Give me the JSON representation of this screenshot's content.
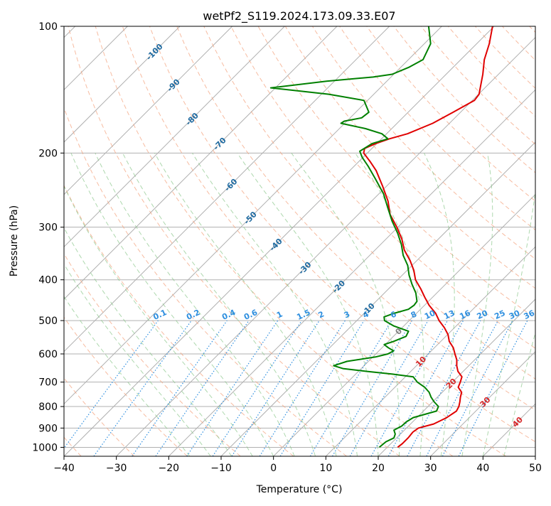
{
  "chart_data": {
    "type": "skew-t",
    "title": "wetPf2_S119.2024.173.09.33.E07",
    "xlabel": "Temperature (°C)",
    "ylabel": "Pressure (hPa)",
    "xlim": [
      -40,
      50
    ],
    "ylim_hpa": [
      1050,
      100
    ],
    "y_scale": "log",
    "grid": true,
    "x_ticks": [
      -40,
      -30,
      -20,
      -10,
      0,
      10,
      20,
      30,
      40,
      50
    ],
    "y_ticks": [
      100,
      200,
      300,
      400,
      500,
      600,
      700,
      800,
      900,
      1000
    ],
    "isotherm_labels": [
      {
        "text": "-100",
        "t": -100,
        "p": 115
      },
      {
        "text": "-90",
        "t": -90,
        "p": 138
      },
      {
        "text": "-80",
        "t": -80,
        "p": 166
      },
      {
        "text": "-70",
        "t": -70,
        "p": 190
      },
      {
        "text": "-60",
        "t": -60,
        "p": 238
      },
      {
        "text": "-50",
        "t": -50,
        "p": 285
      },
      {
        "text": "-40",
        "t": -40,
        "p": 330
      },
      {
        "text": "-30",
        "t": -30,
        "p": 375
      },
      {
        "text": "-20",
        "t": -20,
        "p": 415
      },
      {
        "text": "-10",
        "t": -10,
        "p": 470
      },
      {
        "text": "0",
        "t": 0,
        "p": 530
      },
      {
        "text": "10",
        "t": 10,
        "p": 625
      },
      {
        "text": "20",
        "t": 20,
        "p": 705
      },
      {
        "text": "30",
        "t": 30,
        "p": 780
      },
      {
        "text": "40",
        "t": 40,
        "p": 870
      }
    ],
    "mixing_ratio_labels": [
      {
        "text": "0.1",
        "w": 0.1
      },
      {
        "text": "0.2",
        "w": 0.2
      },
      {
        "text": "0.4",
        "w": 0.4
      },
      {
        "text": "0.6",
        "w": 0.6
      },
      {
        "text": "1",
        "w": 1
      },
      {
        "text": "1.5",
        "w": 1.5
      },
      {
        "text": "2",
        "w": 2
      },
      {
        "text": "3",
        "w": 3
      },
      {
        "text": "4",
        "w": 4
      },
      {
        "text": "6",
        "w": 6
      },
      {
        "text": "8",
        "w": 8
      },
      {
        "text": "10",
        "w": 10
      },
      {
        "text": "13",
        "w": 13
      },
      {
        "text": "16",
        "w": 16
      },
      {
        "text": "20",
        "w": 20
      },
      {
        "text": "25",
        "w": 25
      },
      {
        "text": "30",
        "w": 30
      },
      {
        "text": "36",
        "w": 36
      }
    ],
    "series": [
      {
        "color": "#e00000",
        "points": [
          [
            1000,
            22.0
          ],
          [
            980,
            22.2
          ],
          [
            950,
            22.2
          ],
          [
            920,
            22.0
          ],
          [
            900,
            22.3
          ],
          [
            880,
            24.4
          ],
          [
            850,
            25.7
          ],
          [
            820,
            26.3
          ],
          [
            800,
            25.9
          ],
          [
            780,
            25.2
          ],
          [
            760,
            24.4
          ],
          [
            740,
            23.7
          ],
          [
            720,
            22.1
          ],
          [
            700,
            21.5
          ],
          [
            680,
            20.8
          ],
          [
            660,
            19.0
          ],
          [
            640,
            17.7
          ],
          [
            620,
            16.6
          ],
          [
            600,
            15.1
          ],
          [
            580,
            13.6
          ],
          [
            560,
            11.6
          ],
          [
            540,
            10.1
          ],
          [
            520,
            8.1
          ],
          [
            500,
            5.7
          ],
          [
            480,
            3.6
          ],
          [
            460,
            0.9
          ],
          [
            440,
            -1.5
          ],
          [
            420,
            -3.9
          ],
          [
            400,
            -6.6
          ],
          [
            380,
            -8.7
          ],
          [
            360,
            -11.3
          ],
          [
            340,
            -14.4
          ],
          [
            320,
            -17.0
          ],
          [
            300,
            -20.2
          ],
          [
            280,
            -23.9
          ],
          [
            260,
            -26.9
          ],
          [
            240,
            -30.7
          ],
          [
            220,
            -35.0
          ],
          [
            210,
            -37.7
          ],
          [
            200,
            -40.7
          ],
          [
            195,
            -41.4
          ],
          [
            190,
            -40.2
          ],
          [
            185,
            -38.5
          ],
          [
            180,
            -36.0
          ],
          [
            170,
            -33.2
          ],
          [
            160,
            -31.4
          ],
          [
            150,
            -29.6
          ],
          [
            145,
            -29.9
          ],
          [
            140,
            -30.9
          ],
          [
            130,
            -33.0
          ],
          [
            120,
            -35.5
          ],
          [
            110,
            -37.6
          ],
          [
            100,
            -40.3
          ]
        ]
      },
      {
        "color": "#008000",
        "points": [
          [
            1000,
            18.5
          ],
          [
            970,
            18.7
          ],
          [
            950,
            19.5
          ],
          [
            930,
            19.0
          ],
          [
            910,
            18.0
          ],
          [
            890,
            18.7
          ],
          [
            870,
            18.8
          ],
          [
            850,
            19.3
          ],
          [
            820,
            22.5
          ],
          [
            800,
            22.0
          ],
          [
            780,
            20.3
          ],
          [
            760,
            18.8
          ],
          [
            740,
            17.5
          ],
          [
            720,
            15.7
          ],
          [
            700,
            13.3
          ],
          [
            680,
            11.5
          ],
          [
            670,
            7.0
          ],
          [
            660,
            1.5
          ],
          [
            650,
            -3.5
          ],
          [
            640,
            -5.8
          ],
          [
            625,
            -4.1
          ],
          [
            610,
            0.5
          ],
          [
            600,
            2.3
          ],
          [
            590,
            2.8
          ],
          [
            580,
            1.2
          ],
          [
            570,
            -0.2
          ],
          [
            560,
            1.0
          ],
          [
            545,
            2.4
          ],
          [
            530,
            1.9
          ],
          [
            515,
            -1.9
          ],
          [
            500,
            -4.7
          ],
          [
            490,
            -5.5
          ],
          [
            480,
            -4.2
          ],
          [
            470,
            -2.3
          ],
          [
            460,
            -2.0
          ],
          [
            450,
            -2.2
          ],
          [
            430,
            -4.0
          ],
          [
            410,
            -6.4
          ],
          [
            390,
            -8.7
          ],
          [
            370,
            -10.8
          ],
          [
            350,
            -13.6
          ],
          [
            330,
            -16.0
          ],
          [
            310,
            -18.9
          ],
          [
            290,
            -22.3
          ],
          [
            270,
            -25.6
          ],
          [
            250,
            -29.1
          ],
          [
            230,
            -33.6
          ],
          [
            215,
            -37.3
          ],
          [
            205,
            -40.1
          ],
          [
            198,
            -41.8
          ],
          [
            190,
            -40.9
          ],
          [
            185,
            -38.8
          ],
          [
            180,
            -40.9
          ],
          [
            175,
            -45.0
          ],
          [
            170,
            -50.7
          ],
          [
            168,
            -50.5
          ],
          [
            165,
            -47.8
          ],
          [
            160,
            -47.5
          ],
          [
            150,
            -50.7
          ],
          [
            145,
            -58.6
          ],
          [
            140,
            -70.9
          ],
          [
            135,
            -61.5
          ],
          [
            132,
            -53.4
          ],
          [
            130,
            -50.3
          ],
          [
            125,
            -48.4
          ],
          [
            120,
            -47.2
          ],
          [
            110,
            -48.8
          ],
          [
            100,
            -52.5
          ]
        ]
      }
    ]
  }
}
